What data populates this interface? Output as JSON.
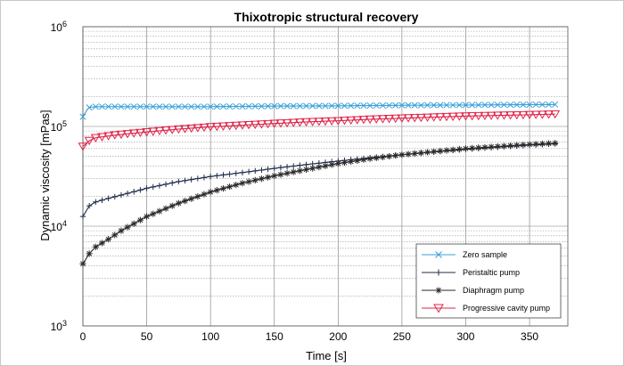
{
  "chart_data": {
    "type": "line",
    "title": "Thixotropic structural recovery",
    "xlabel": "Time [s]",
    "ylabel": "Dynamic viscosity [mPas]",
    "xlim": [
      0,
      380
    ],
    "ylim": [
      1000,
      1000000
    ],
    "yscale": "log",
    "grid": true,
    "legend_position": "bottom-right",
    "x_ticks": [
      "0",
      "50",
      "100",
      "150",
      "200",
      "250",
      "300",
      "350"
    ],
    "y_ticks": [
      {
        "base": "10",
        "exp": "3",
        "value": 1000
      },
      {
        "base": "10",
        "exp": "4",
        "value": 10000
      },
      {
        "base": "10",
        "exp": "5",
        "value": 100000
      },
      {
        "base": "10",
        "exp": "6",
        "value": 1000000
      }
    ],
    "marker_interval_s": 5,
    "series": [
      {
        "name": "Zero sample",
        "color": "#3aa0d8",
        "marker": "x",
        "points": [
          [
            0,
            125000
          ],
          [
            3,
            145000
          ],
          [
            5,
            155000
          ],
          [
            10,
            158000
          ],
          [
            50,
            158000
          ],
          [
            100,
            158000
          ],
          [
            150,
            160000
          ],
          [
            200,
            161000
          ],
          [
            250,
            163000
          ],
          [
            300,
            164000
          ],
          [
            370,
            166000
          ]
        ]
      },
      {
        "name": "Peristaltic pump",
        "color": "#1f2d4a",
        "marker": "plus",
        "points": [
          [
            0,
            12500
          ],
          [
            5,
            16000
          ],
          [
            10,
            17500
          ],
          [
            20,
            19000
          ],
          [
            30,
            20500
          ],
          [
            50,
            24000
          ],
          [
            75,
            28000
          ],
          [
            100,
            31500
          ],
          [
            125,
            34500
          ],
          [
            150,
            38000
          ],
          [
            175,
            41500
          ],
          [
            200,
            45000
          ],
          [
            225,
            48500
          ],
          [
            250,
            52000
          ],
          [
            275,
            55500
          ],
          [
            300,
            59000
          ],
          [
            325,
            62000
          ],
          [
            350,
            65000
          ],
          [
            370,
            67000
          ]
        ]
      },
      {
        "name": "Diaphragm pump",
        "color": "#2a2a2a",
        "marker": "asterisk",
        "points": [
          [
            0,
            4200
          ],
          [
            5,
            5300
          ],
          [
            10,
            6200
          ],
          [
            20,
            7400
          ],
          [
            30,
            9000
          ],
          [
            50,
            12500
          ],
          [
            75,
            17000
          ],
          [
            100,
            22000
          ],
          [
            125,
            27000
          ],
          [
            150,
            32000
          ],
          [
            175,
            37000
          ],
          [
            200,
            42500
          ],
          [
            225,
            47500
          ],
          [
            250,
            52000
          ],
          [
            275,
            56000
          ],
          [
            300,
            60000
          ],
          [
            325,
            63000
          ],
          [
            350,
            66000
          ],
          [
            370,
            68000
          ]
        ]
      },
      {
        "name": "Progressive cavity pump",
        "color": "#e0244a",
        "marker": "triangle-down",
        "points": [
          [
            0,
            63000
          ],
          [
            5,
            72000
          ],
          [
            10,
            77000
          ],
          [
            25,
            82000
          ],
          [
            50,
            88000
          ],
          [
            75,
            94000
          ],
          [
            100,
            99000
          ],
          [
            125,
            103000
          ],
          [
            150,
            107000
          ],
          [
            175,
            111000
          ],
          [
            200,
            114000
          ],
          [
            225,
            118000
          ],
          [
            250,
            121000
          ],
          [
            275,
            124000
          ],
          [
            300,
            127000
          ],
          [
            325,
            129000
          ],
          [
            350,
            131000
          ],
          [
            370,
            133000
          ]
        ]
      }
    ]
  }
}
